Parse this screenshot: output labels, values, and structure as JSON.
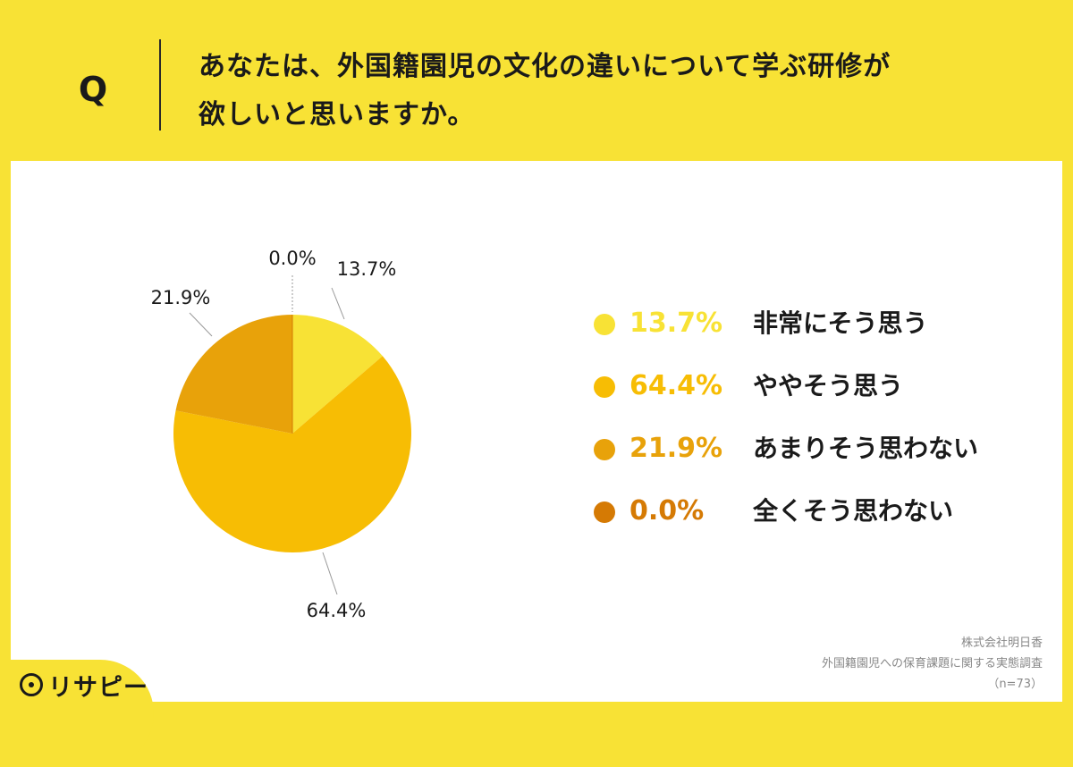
{
  "header": {
    "q_mark": "Q",
    "question_line1": "あなたは、外国籍園児の文化の違いについて学ぶ研修が",
    "question_line2": "欲しいと思いますか。"
  },
  "chart_data": {
    "type": "pie",
    "slices": [
      {
        "label": "非常にそう思う",
        "value": 13.7,
        "display": "13.7%",
        "color": "#F8E235"
      },
      {
        "label": "ややそう思う",
        "value": 64.4,
        "display": "64.4%",
        "color": "#F7BD04"
      },
      {
        "label": "あまりそう思わない",
        "value": 21.9,
        "display": "21.9%",
        "color": "#E8A20A"
      },
      {
        "label": "全くそう思わない",
        "value": 0.0,
        "display": "0.0%",
        "color": "#D57A04"
      }
    ],
    "start_angle_deg": 0,
    "direction": "clockwise",
    "legend_position": "right"
  },
  "source": {
    "company": "株式会社明日香",
    "survey": "外国籍園児への保育課題に関する実態調査",
    "sample": "（n=73）"
  },
  "logo": {
    "text": "リサピー",
    "icon": "pin-icon"
  }
}
